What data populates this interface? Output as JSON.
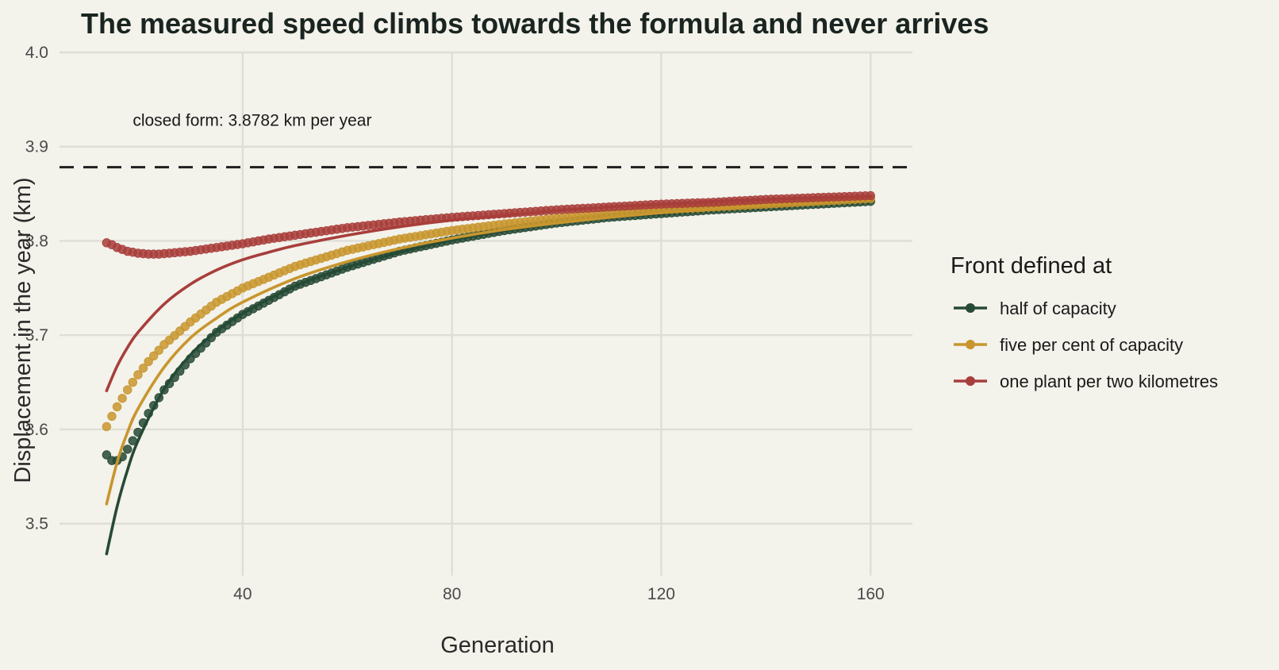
{
  "chart_data": {
    "type": "line",
    "title": "The measured speed climbs towards the formula and never arrives",
    "xlabel": "Generation",
    "ylabel": "Displacement in the year (km)",
    "xlim": [
      5,
      168
    ],
    "ylim": [
      3.445,
      4.0
    ],
    "x_ticks": [
      40,
      80,
      120,
      160
    ],
    "x_tick_labels": [
      "40",
      "80",
      "120",
      "160"
    ],
    "y_ticks": [
      3.5,
      3.6,
      3.7,
      3.8,
      3.9,
      4.0
    ],
    "y_tick_labels": [
      "3.5",
      "3.6",
      "3.7",
      "3.8",
      "3.9",
      "4.0"
    ],
    "grid": true,
    "legend_title": "Front defined at",
    "legend_position": "right",
    "reference_line": {
      "y": 3.8782,
      "style": "dashed",
      "color": "#1f1f1f",
      "label": "closed form: 3.8782 km per year",
      "label_x": 19,
      "label_y": 3.922
    },
    "series": [
      {
        "name": "half of capacity",
        "color": "#264a35",
        "points": {
          "x": [
            14,
            15,
            16,
            17,
            18,
            19,
            20,
            22,
            25,
            30,
            35,
            40,
            50,
            60,
            70,
            80,
            90,
            100,
            110,
            120,
            130,
            140,
            150,
            160
          ],
          "y": [
            3.573,
            3.567,
            3.567,
            3.571,
            3.579,
            3.588,
            3.597,
            3.617,
            3.642,
            3.675,
            3.703,
            3.722,
            3.752,
            3.772,
            3.789,
            3.801,
            3.811,
            3.819,
            3.825,
            3.829,
            3.833,
            3.836,
            3.839,
            3.842
          ]
        },
        "curve": {
          "x": [
            14,
            16,
            18,
            20,
            25,
            30,
            35,
            40,
            50,
            60,
            70,
            80,
            90,
            100,
            110,
            120,
            130,
            140,
            150,
            160
          ],
          "y": [
            3.468,
            3.518,
            3.557,
            3.588,
            3.643,
            3.679,
            3.704,
            3.723,
            3.752,
            3.772,
            3.788,
            3.801,
            3.811,
            3.819,
            3.825,
            3.829,
            3.833,
            3.836,
            3.839,
            3.842
          ]
        }
      },
      {
        "name": "five per cent of capacity",
        "color": "#c8962e",
        "points": {
          "x": [
            14,
            15,
            16,
            17,
            18,
            20,
            22,
            25,
            30,
            35,
            40,
            50,
            60,
            70,
            80,
            90,
            100,
            110,
            120,
            130,
            140,
            150,
            160
          ],
          "y": [
            3.603,
            3.614,
            3.624,
            3.633,
            3.642,
            3.658,
            3.672,
            3.69,
            3.714,
            3.735,
            3.75,
            3.773,
            3.79,
            3.802,
            3.811,
            3.818,
            3.824,
            3.829,
            3.833,
            3.836,
            3.839,
            3.842,
            3.845
          ]
        },
        "curve": {
          "x": [
            14,
            16,
            18,
            20,
            25,
            30,
            35,
            40,
            50,
            60,
            70,
            80,
            90,
            100,
            110,
            120,
            130,
            140,
            150,
            160
          ],
          "y": [
            3.521,
            3.565,
            3.597,
            3.622,
            3.666,
            3.697,
            3.718,
            3.735,
            3.76,
            3.778,
            3.792,
            3.803,
            3.812,
            3.819,
            3.825,
            3.83,
            3.834,
            3.838,
            3.841,
            3.844
          ]
        }
      },
      {
        "name": "one plant per two kilometres",
        "color": "#a83e3b",
        "points": {
          "x": [
            14,
            15,
            16,
            17,
            18,
            20,
            22,
            24,
            26,
            28,
            30,
            35,
            40,
            45,
            50,
            60,
            70,
            80,
            90,
            100,
            110,
            120,
            130,
            140,
            150,
            160
          ],
          "y": [
            3.798,
            3.796,
            3.793,
            3.791,
            3.789,
            3.787,
            3.786,
            3.786,
            3.787,
            3.788,
            3.789,
            3.793,
            3.797,
            3.802,
            3.806,
            3.814,
            3.82,
            3.825,
            3.829,
            3.833,
            3.836,
            3.839,
            3.841,
            3.844,
            3.846,
            3.848
          ]
        },
        "curve": {
          "x": [
            14,
            16,
            18,
            20,
            25,
            30,
            35,
            40,
            45,
            50,
            60,
            70,
            80,
            90,
            100,
            110,
            120,
            130,
            140,
            150,
            160
          ],
          "y": [
            3.641,
            3.667,
            3.687,
            3.703,
            3.733,
            3.754,
            3.769,
            3.78,
            3.788,
            3.795,
            3.806,
            3.815,
            3.822,
            3.827,
            3.832,
            3.836,
            3.839,
            3.842,
            3.844,
            3.846,
            3.847
          ]
        }
      }
    ]
  }
}
